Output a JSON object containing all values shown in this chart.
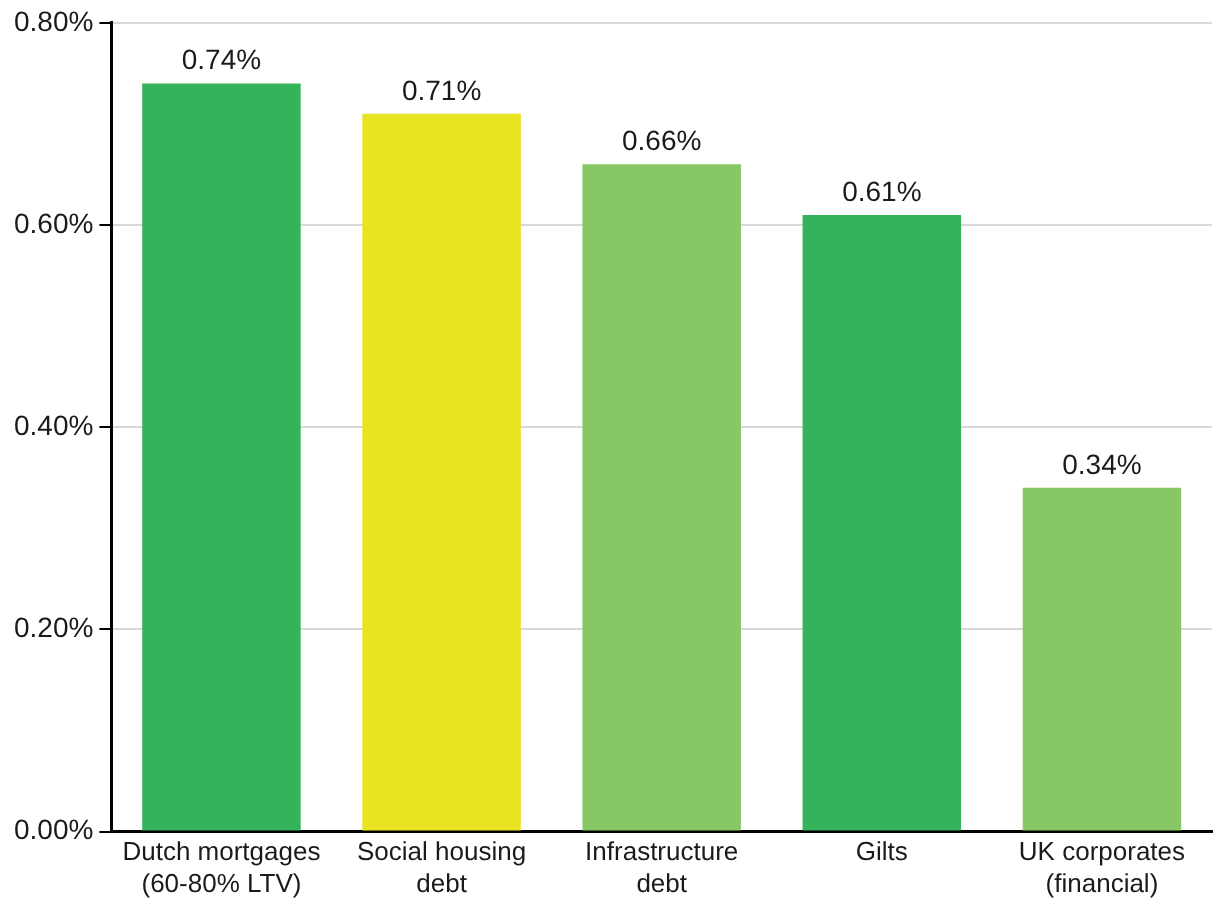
{
  "chart_data": {
    "type": "bar",
    "categories": [
      "Dutch mortgages (60-80% LTV)",
      "Social housing debt",
      "Infrastructure debt",
      "Gilts",
      "UK corporates (financial)"
    ],
    "values": [
      0.74,
      0.71,
      0.66,
      0.61,
      0.34
    ],
    "value_labels": [
      "0.74%",
      "0.71%",
      "0.66%",
      "0.61%",
      "0.34%"
    ],
    "colors": [
      "#35b35a",
      "#e8e421",
      "#88c765",
      "#35b35a",
      "#88c765"
    ],
    "ylim": [
      0,
      0.8
    ],
    "yticks": [
      {
        "value": 0,
        "label": "0.00%"
      },
      {
        "value": 0.2,
        "label": "0.20%"
      },
      {
        "value": 0.4,
        "label": "0.40%"
      },
      {
        "value": 0.6,
        "label": "0.60%"
      },
      {
        "value": 0.8,
        "label": "0.80%"
      }
    ],
    "grid": "y",
    "legend": false
  }
}
